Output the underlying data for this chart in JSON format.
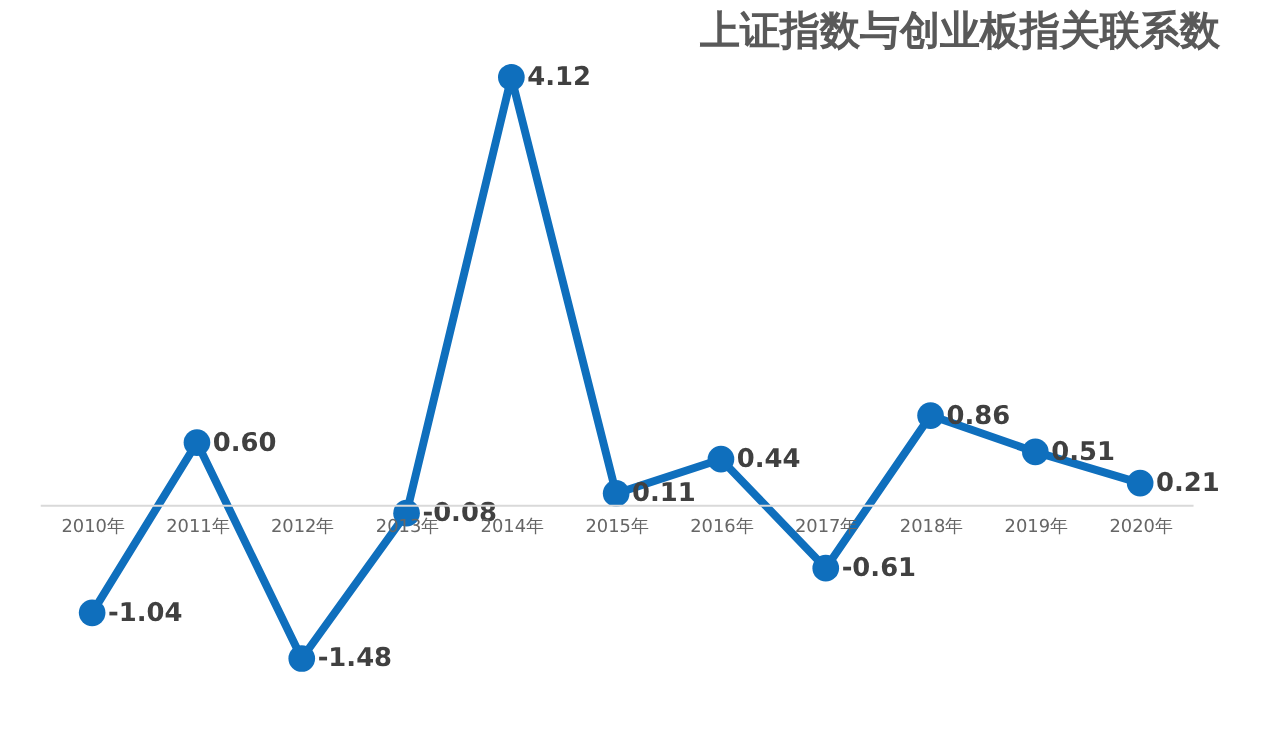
{
  "chart_data": {
    "type": "line",
    "title": "上证指数与创业板指关联系数",
    "categories": [
      "2010年",
      "2011年",
      "2012年",
      "2013年",
      "2014年",
      "2015年",
      "2016年",
      "2017年",
      "2018年",
      "2019年",
      "2020年"
    ],
    "series": [
      {
        "color": "#0f6fbd",
        "values": [
          -1.04,
          0.6,
          -1.48,
          -0.08,
          4.12,
          0.11,
          0.44,
          -0.61,
          0.86,
          0.51,
          0.21
        ],
        "value_labels": [
          "-1.04",
          "0.60",
          "-1.48",
          "-0.08",
          "4.12",
          "0.11",
          "0.44",
          "-0.61",
          "0.86",
          "0.51",
          "0.21"
        ]
      }
    ],
    "marker": "circle",
    "line_style": "solid",
    "grid": false
  }
}
